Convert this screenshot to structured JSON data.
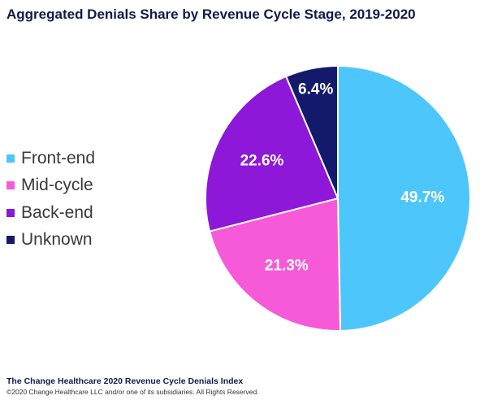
{
  "chart_data": {
    "type": "pie",
    "title": "Aggregated Denials Share by Revenue Cycle Stage, 2019-2020",
    "slices": [
      {
        "name": "Front-end",
        "value": 49.7,
        "label": "49.7%",
        "color": "#4dc6fc"
      },
      {
        "name": "Mid-cycle",
        "value": 21.3,
        "label": "21.3%",
        "color": "#f75ad8"
      },
      {
        "name": "Back-end",
        "value": 22.6,
        "label": "22.6%",
        "color": "#8d18d8"
      },
      {
        "name": "Unknown",
        "value": 6.4,
        "label": "6.4%",
        "color": "#131a6b"
      }
    ],
    "legend_position": "left",
    "start": "top",
    "direction": "clockwise"
  },
  "footer": {
    "title": "The Change Healthcare 2020 Revenue Cycle Denials Index",
    "copyright": "©2020 Change Healthcare LLC and/or one of its subsidiaries. All Rights Reserved."
  }
}
